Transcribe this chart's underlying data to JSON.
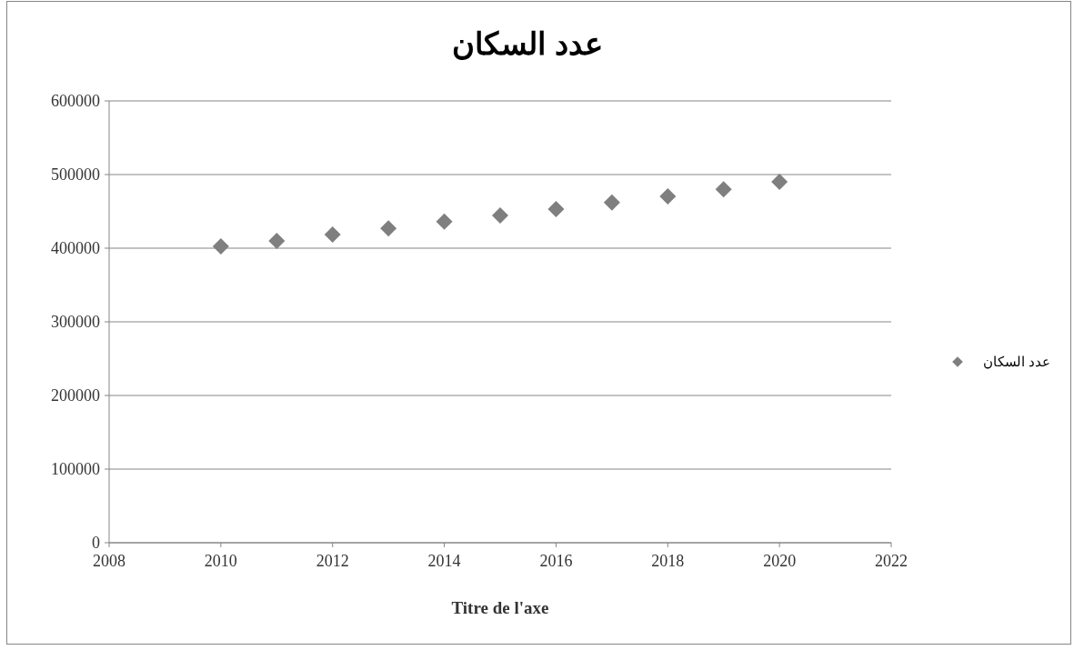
{
  "chart_data": {
    "type": "scatter",
    "title": "عدد السكان",
    "xlabel": "Titre de l'axe",
    "x": [
      2010,
      2011,
      2012,
      2013,
      2014,
      2015,
      2016,
      2017,
      2018,
      2019,
      2020
    ],
    "series": [
      {
        "name": "عدد السكان",
        "color": "#7f7f7f",
        "values": [
          402500,
          410000,
          418500,
          427000,
          436000,
          444500,
          453000,
          462000,
          470500,
          480000,
          490000
        ]
      }
    ],
    "xlim": [
      2008,
      2022
    ],
    "xticks": [
      2008,
      2010,
      2012,
      2014,
      2016,
      2018,
      2020,
      2022
    ],
    "ylim": [
      0,
      600000
    ],
    "yticks": [
      0,
      100000,
      200000,
      300000,
      400000,
      500000,
      600000
    ],
    "grid": "y",
    "legend": "right",
    "marker": "diamond"
  }
}
